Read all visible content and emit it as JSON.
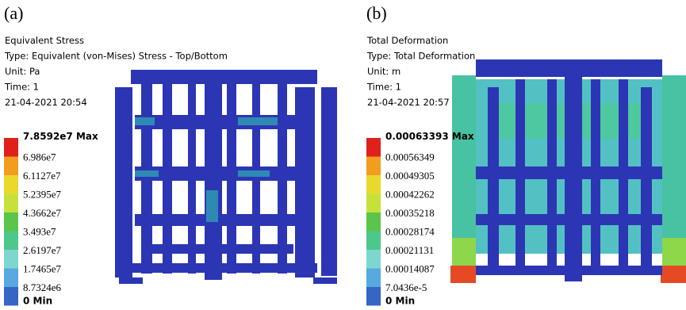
{
  "panels": [
    {
      "label": "(a)",
      "lines": [
        "Equivalent Stress",
        "Type: Equivalent (von-Mises) Stress - Top/Bottom",
        "Unit: Pa",
        "Time: 1",
        "21-04-2021 20:54"
      ],
      "legend": [
        "7.8592e7 Max",
        "6.986e7",
        "6.1127e7",
        "5.2395e7",
        "4.3662e7",
        "3.493e7",
        "2.6197e7",
        "1.7465e7",
        "8.7324e6",
        "0 Min"
      ]
    },
    {
      "label": "(b)",
      "lines": [
        "Total Deformation",
        "Type: Total Deformation",
        "Unit: m",
        "Time: 1",
        "21-04-2021 20:57"
      ],
      "legend": [
        "0.00063393 Max",
        "0.00056349",
        "0.00049305",
        "0.00042262",
        "0.00035218",
        "0.00028174",
        "0.00021131",
        "0.00014087",
        "7.0436e-5",
        "0 Min"
      ]
    }
  ]
}
